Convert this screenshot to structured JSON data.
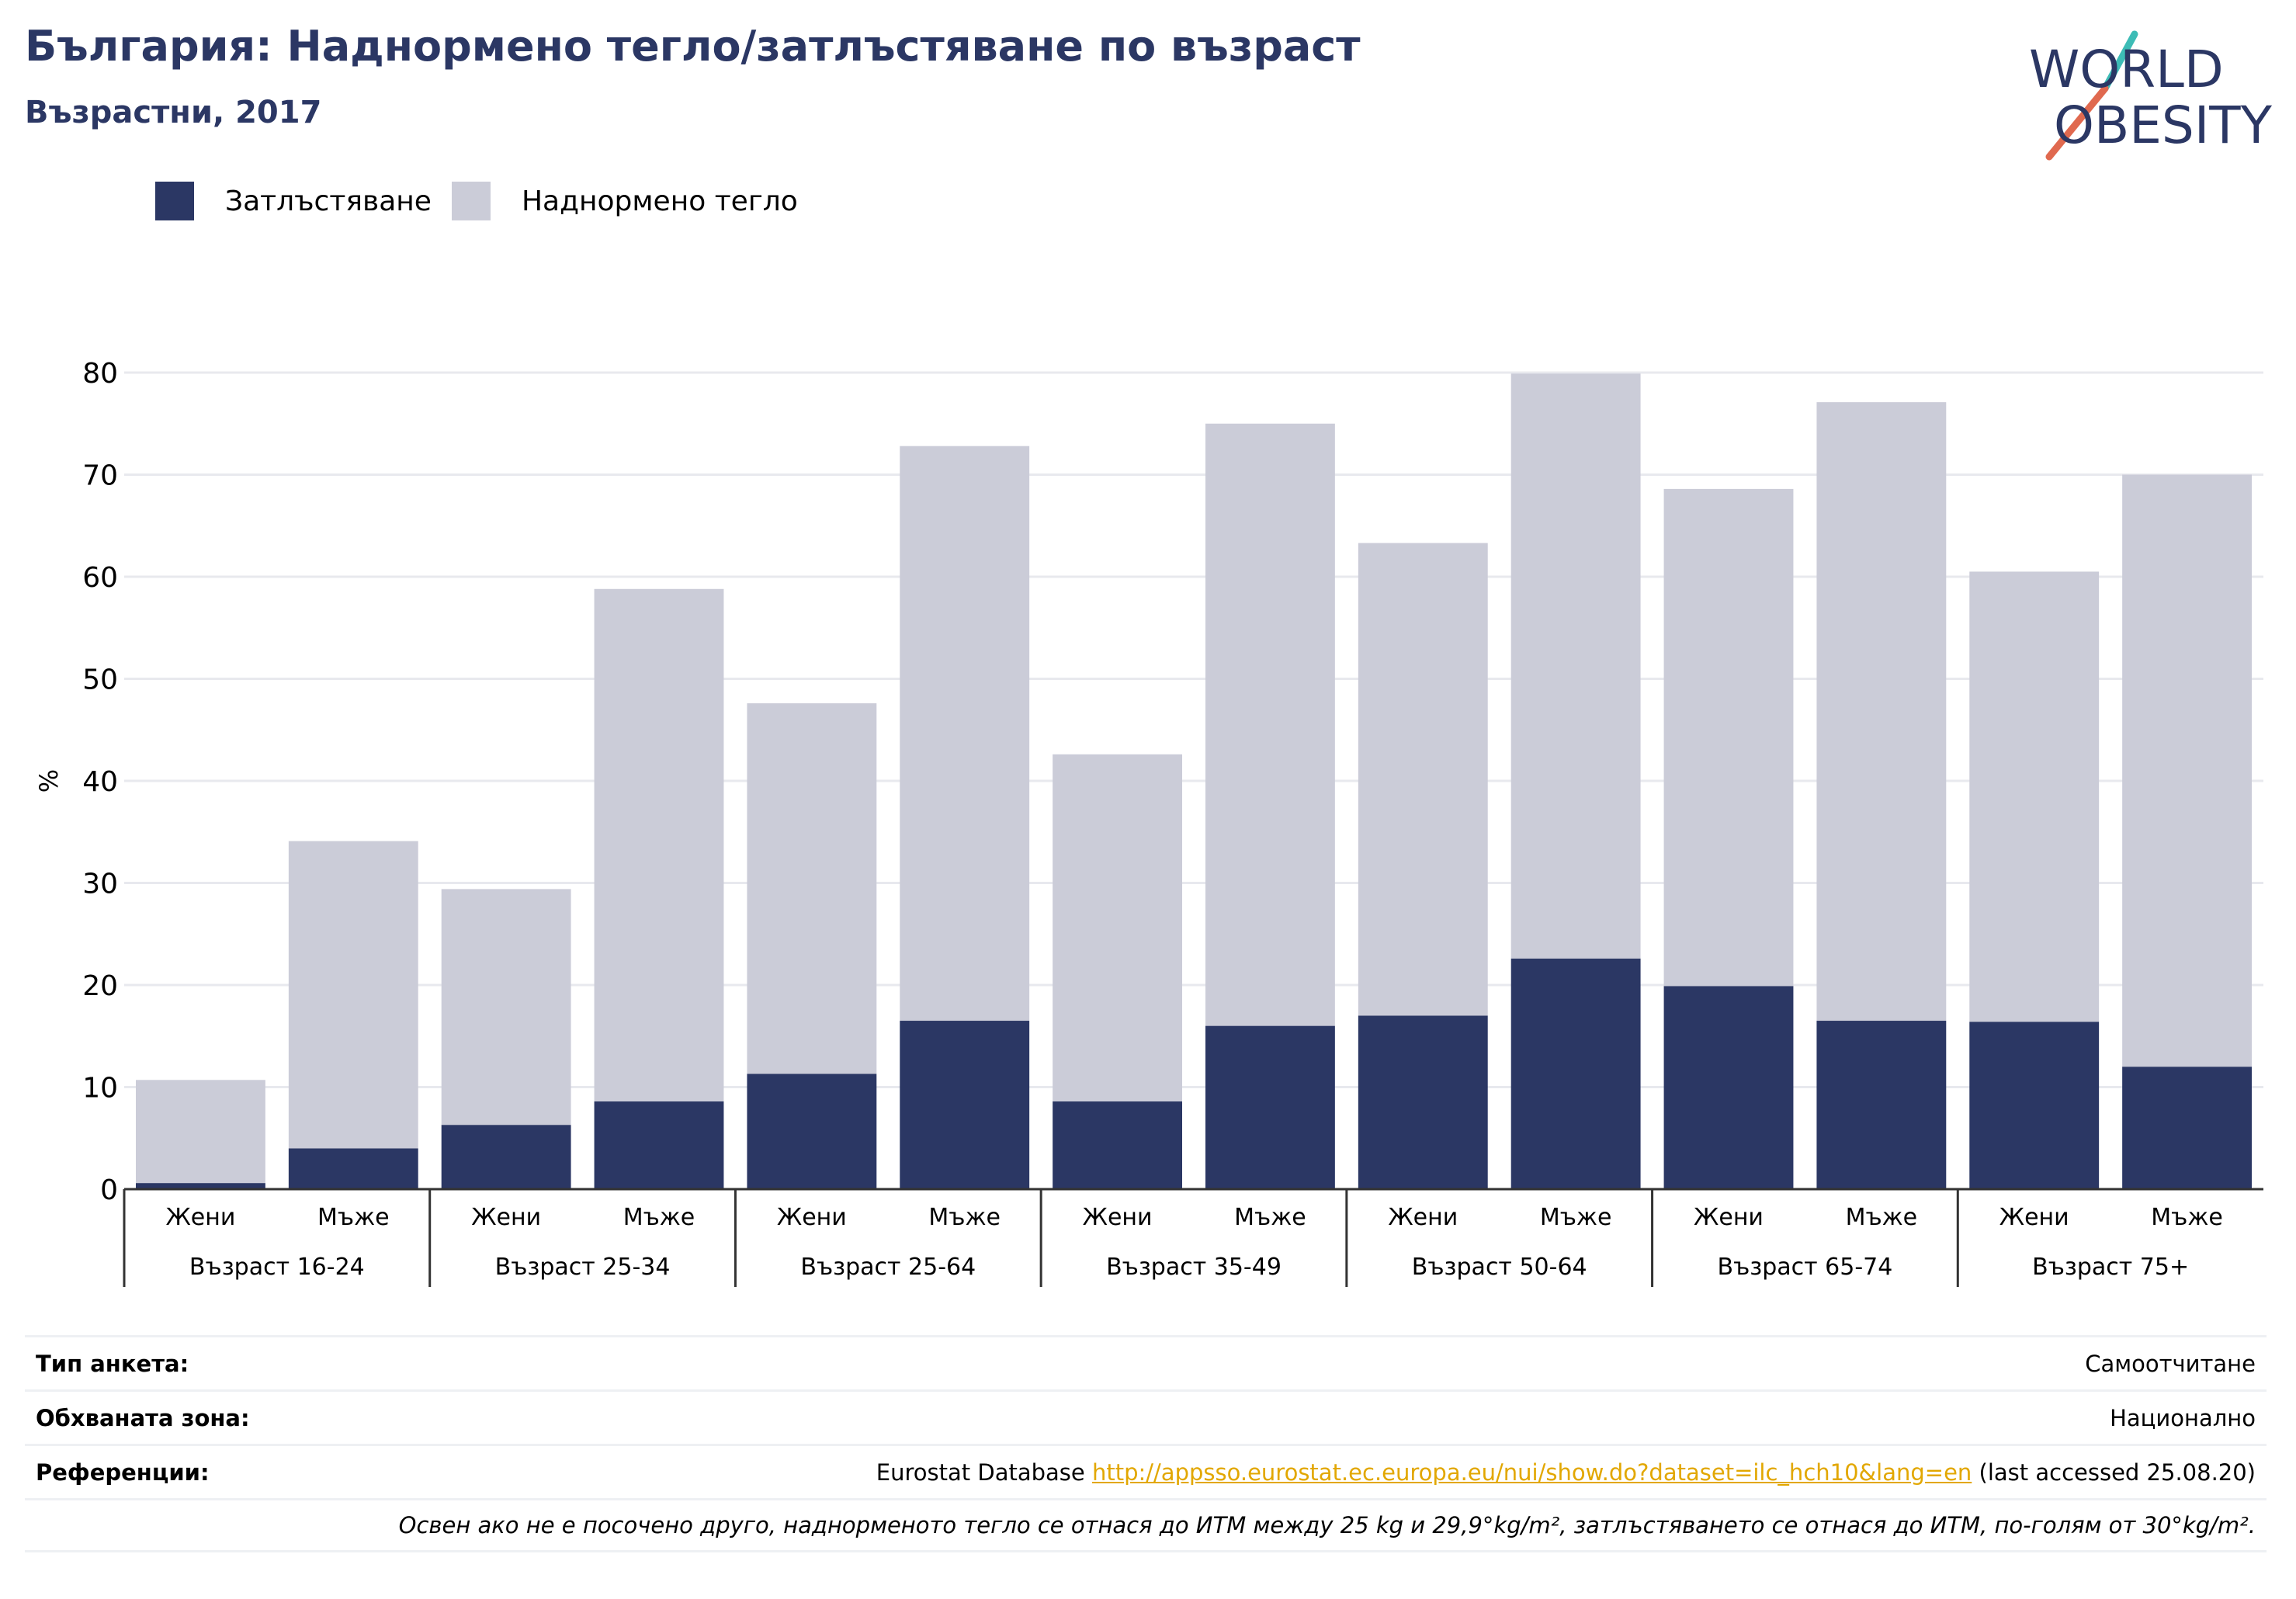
{
  "header": {
    "title": "България: Наднормено тегло/затлъстяване по възраст",
    "subtitle": "Възрастни, 2017"
  },
  "logo": {
    "line1": "WORLD",
    "line2": "OBESITY",
    "colors": {
      "text": "#2b3764",
      "slash_top": "#3dbcb6",
      "slash_bottom": "#e0694f"
    }
  },
  "legend": [
    {
      "label": "Затлъстяване",
      "color": "#2b3764"
    },
    {
      "label": "Наднормено тегло",
      "color": "#cbccd8"
    }
  ],
  "chart_data": {
    "type": "bar",
    "stacked": true,
    "ylabel": "%",
    "ylim": [
      0,
      80
    ],
    "yticks": [
      0,
      10,
      20,
      30,
      40,
      50,
      60,
      70,
      80
    ],
    "grid": true,
    "legend_position": "top-left",
    "groups": [
      {
        "label": "Възраст 16-24",
        "categories": [
          "Жени",
          "Мъже"
        ]
      },
      {
        "label": "Възраст 25-34",
        "categories": [
          "Жени",
          "Мъже"
        ]
      },
      {
        "label": "Възраст 25-64",
        "categories": [
          "Жени",
          "Мъже"
        ]
      },
      {
        "label": "Възраст 35-49",
        "categories": [
          "Жени",
          "Мъже"
        ]
      },
      {
        "label": "Възраст 50-64",
        "categories": [
          "Жени",
          "Мъже"
        ]
      },
      {
        "label": "Възраст 65-74",
        "categories": [
          "Жени",
          "Мъже"
        ]
      },
      {
        "label": "Възраст 75+",
        "categories": [
          "Жени",
          "Мъже"
        ]
      }
    ],
    "series": [
      {
        "name": "Затлъстяване",
        "color": "#2b3764",
        "values": [
          0.6,
          4.0,
          6.3,
          8.6,
          11.3,
          16.5,
          8.6,
          16.0,
          17.0,
          22.6,
          19.9,
          16.5,
          16.4,
          12.0
        ]
      },
      {
        "name": "Наднормено тегло",
        "color": "#cbccd8",
        "values": [
          10.1,
          30.1,
          23.1,
          50.2,
          36.3,
          56.3,
          34.0,
          59.0,
          46.3,
          57.3,
          48.7,
          60.6,
          44.1,
          58.0
        ]
      }
    ]
  },
  "footer": {
    "survey_type": {
      "label": "Тип анкета:",
      "value": "Самоотчитане"
    },
    "coverage": {
      "label": "Обхваната зона:",
      "value": "Национално"
    },
    "references": {
      "label": "Референции:",
      "prefix": "Eurostat Database",
      "link": "http://appsso.eurostat.ec.europa.eu/nui/show.do?dataset=ilc_hch10&lang=en",
      "suffix": "(last accessed 25.08.20)"
    },
    "note": "Освен ако не е посочено друго, наднорменото тегло се отнася до ИТМ между 25 kg и 29,9°kg/m², затлъстяването се отнася до ИТМ, по-голям от 30°kg/m²."
  }
}
